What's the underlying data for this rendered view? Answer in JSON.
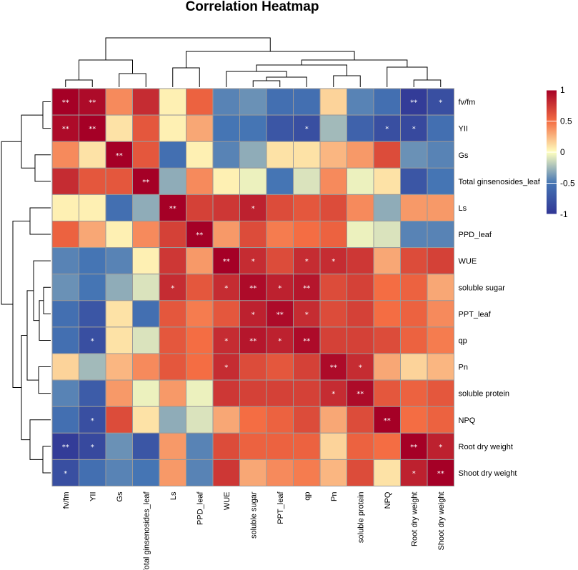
{
  "chart_data": {
    "type": "heatmap",
    "title": "Correlation Heatmap",
    "rows": [
      "fv/fm",
      "YII",
      "Gs",
      "Total ginsenosides_leaf",
      "Ls",
      "PPD_leaf",
      "WUE",
      "soluble sugar",
      "PPT_leaf",
      "qp",
      "Pn",
      "soluble protein",
      "NPQ",
      "Root dry weight",
      "Shoot dry weight"
    ],
    "cols": [
      "fv/fm",
      "YII",
      "Gs",
      "Total ginsenosides_leaf",
      "Ls",
      "PPD_leaf",
      "WUE",
      "soluble sugar",
      "PPT_leaf",
      "qp",
      "Pn",
      "soluble protein",
      "NPQ",
      "Root dry weight",
      "Shoot dry weight"
    ],
    "values": [
      [
        1.0,
        0.95,
        0.4,
        0.8,
        0.05,
        0.55,
        -0.45,
        -0.4,
        -0.55,
        -0.55,
        0.15,
        -0.45,
        -0.55,
        -0.95,
        -0.8
      ],
      [
        0.95,
        1.0,
        0.1,
        0.6,
        0.05,
        0.3,
        -0.5,
        -0.5,
        -0.75,
        -0.8,
        -0.25,
        -0.65,
        -0.8,
        -0.85,
        -0.55
      ],
      [
        0.4,
        0.1,
        1.0,
        0.6,
        -0.55,
        0.05,
        -0.45,
        -0.3,
        0.1,
        0.1,
        0.25,
        0.35,
        0.65,
        -0.4,
        -0.45
      ],
      [
        0.8,
        0.6,
        0.6,
        1.0,
        -0.3,
        0.4,
        0.05,
        -0.05,
        -0.5,
        -0.1,
        0.4,
        -0.05,
        0.1,
        -0.75,
        -0.5
      ],
      [
        0.05,
        0.05,
        -0.55,
        -0.3,
        1.0,
        0.7,
        0.75,
        0.85,
        0.65,
        0.6,
        0.65,
        0.4,
        -0.3,
        0.35,
        0.35
      ],
      [
        0.55,
        0.3,
        0.05,
        0.4,
        0.7,
        1.0,
        0.35,
        0.65,
        0.45,
        0.5,
        0.55,
        -0.05,
        -0.1,
        -0.45,
        -0.45
      ],
      [
        -0.45,
        -0.5,
        -0.45,
        0.05,
        0.75,
        0.35,
        1.0,
        0.8,
        0.65,
        0.8,
        0.8,
        0.75,
        0.3,
        0.65,
        0.7
      ],
      [
        -0.4,
        -0.5,
        -0.3,
        -0.1,
        0.8,
        0.6,
        0.8,
        0.95,
        0.85,
        0.9,
        0.65,
        0.7,
        0.5,
        0.55,
        0.3
      ],
      [
        -0.55,
        -0.75,
        0.1,
        -0.55,
        0.6,
        0.45,
        0.6,
        0.85,
        0.95,
        0.8,
        0.65,
        0.7,
        0.5,
        0.55,
        0.4
      ],
      [
        -0.55,
        -0.8,
        0.1,
        -0.1,
        0.6,
        0.5,
        0.8,
        0.9,
        0.85,
        0.95,
        0.7,
        0.7,
        0.65,
        0.55,
        0.45
      ],
      [
        0.15,
        -0.25,
        0.25,
        0.4,
        0.6,
        0.5,
        0.8,
        0.65,
        0.6,
        0.7,
        0.95,
        0.8,
        0.3,
        0.15,
        0.25
      ],
      [
        -0.45,
        -0.7,
        0.35,
        -0.05,
        0.35,
        -0.05,
        0.75,
        0.7,
        0.7,
        0.7,
        0.8,
        0.95,
        0.6,
        0.55,
        0.6
      ],
      [
        -0.55,
        -0.8,
        0.65,
        0.1,
        -0.3,
        -0.1,
        0.3,
        0.5,
        0.55,
        0.65,
        0.3,
        0.65,
        1.0,
        0.5,
        0.55
      ],
      [
        -0.95,
        -0.85,
        -0.4,
        -0.75,
        0.35,
        -0.45,
        0.65,
        0.55,
        0.55,
        0.55,
        0.15,
        0.55,
        0.5,
        1.0,
        0.85
      ],
      [
        -0.8,
        -0.55,
        -0.45,
        -0.5,
        0.35,
        -0.45,
        0.75,
        0.3,
        0.4,
        0.45,
        0.25,
        0.65,
        0.1,
        0.85,
        1.0
      ]
    ],
    "significance": [
      [
        "**",
        "**",
        "",
        "",
        "",
        "",
        "",
        "",
        "",
        "",
        "",
        "",
        "",
        "**",
        "*"
      ],
      [
        "**",
        "**",
        "",
        "",
        "",
        "",
        "",
        "",
        "",
        "*",
        "",
        "",
        "*",
        "*",
        ""
      ],
      [
        "",
        "",
        "**",
        "",
        "",
        "",
        "",
        "",
        "",
        "",
        "",
        "",
        "",
        "",
        ""
      ],
      [
        "",
        "",
        "",
        "**",
        "",
        "",
        "",
        "",
        "",
        "",
        "",
        "",
        "",
        "",
        ""
      ],
      [
        "",
        "",
        "",
        "",
        "**",
        "",
        "",
        "*",
        "",
        "",
        "",
        "",
        "",
        "",
        ""
      ],
      [
        "",
        "",
        "",
        "",
        "",
        "**",
        "",
        "",
        "",
        "",
        "",
        "",
        "",
        "",
        ""
      ],
      [
        "",
        "",
        "",
        "",
        "",
        "",
        "**",
        "*",
        "",
        "*",
        "*",
        "",
        "",
        "",
        ""
      ],
      [
        "",
        "",
        "",
        "",
        "*",
        "",
        "*",
        "**",
        "*",
        "**",
        "",
        "",
        "",
        "",
        ""
      ],
      [
        "",
        "",
        "",
        "",
        "",
        "",
        "",
        "*",
        "**",
        "*",
        "",
        "",
        "",
        "",
        ""
      ],
      [
        "",
        "*",
        "",
        "",
        "",
        "",
        "*",
        "**",
        "*",
        "**",
        "",
        "",
        "",
        "",
        ""
      ],
      [
        "",
        "",
        "",
        "",
        "",
        "",
        "*",
        "",
        "",
        "",
        "**",
        "*",
        "",
        "",
        ""
      ],
      [
        "",
        "",
        "",
        "",
        "",
        "",
        "",
        "",
        "",
        "",
        "*",
        "**",
        "",
        "",
        ""
      ],
      [
        "",
        "*",
        "",
        "",
        "",
        "",
        "",
        "",
        "",
        "",
        "",
        "",
        "**",
        "",
        ""
      ],
      [
        "**",
        "*",
        "",
        "",
        "",
        "",
        "",
        "",
        "",
        "",
        "",
        "",
        "",
        "**",
        "*"
      ],
      [
        "*",
        "",
        "",
        "",
        "",
        "",
        "",
        "",
        "",
        "",
        "",
        "",
        "",
        "*",
        "**"
      ]
    ],
    "color_range": [
      -1,
      1
    ],
    "legend_ticks": [
      1,
      0.5,
      0,
      -0.5,
      -1
    ],
    "legend_tick_labels": [
      "1",
      "0.5",
      "0",
      "-0.5",
      "-1"
    ],
    "colors": {
      "low": "#313695",
      "mid_low": "#4575b4",
      "mid": "#ffffbf",
      "mid_high": "#f46d43",
      "high": "#a50026",
      "grid": "#9a9a9a"
    },
    "legend_position": "right"
  }
}
